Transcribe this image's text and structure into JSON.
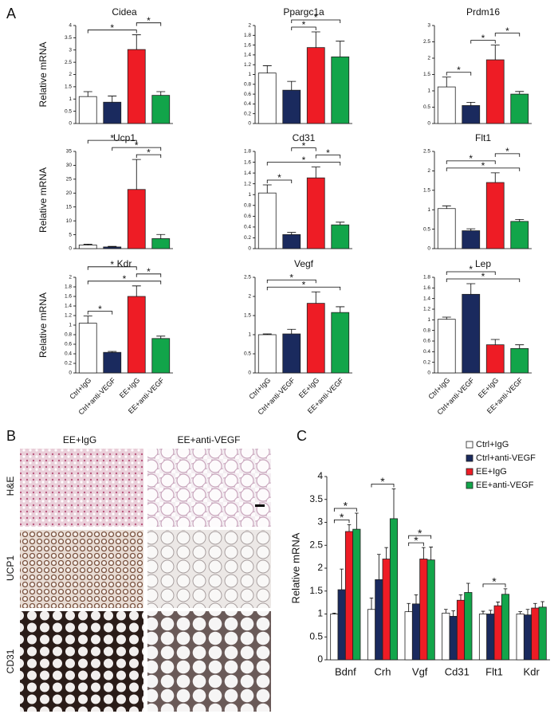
{
  "panel_labels": [
    "A",
    "B",
    "C"
  ],
  "images": {
    "columns": [
      "EE+IgG",
      "EE+anti-VEGF"
    ],
    "rows": [
      "H&E",
      "UCP1",
      "CD31"
    ]
  },
  "chart_data": [
    {
      "type": "bar",
      "title": "Cidea",
      "y_label": "Relative mRNA",
      "colors": [
        "#ffffff",
        "#1a2a5e",
        "#ee1c25",
        "#12a54a"
      ],
      "values": [
        1.1,
        0.87,
        3.02,
        1.15
      ],
      "errors": [
        0.2,
        0.25,
        0.6,
        0.15
      ],
      "ylim": [
        0,
        4
      ],
      "yticks": [
        0,
        0.5,
        1,
        1.5,
        2,
        2.5,
        3,
        3.5,
        4
      ],
      "significance": [
        {
          "label": "*",
          "bars": [
            0,
            2
          ]
        },
        {
          "label": "*",
          "bars": [
            2,
            3
          ]
        }
      ]
    },
    {
      "type": "bar",
      "title": "Ppargc1a",
      "colors": [
        "#ffffff",
        "#1a2a5e",
        "#ee1c25",
        "#12a54a"
      ],
      "values": [
        1.03,
        0.68,
        1.55,
        1.36
      ],
      "errors": [
        0.15,
        0.18,
        0.32,
        0.32
      ],
      "ylim": [
        0,
        2
      ],
      "yticks": [
        0,
        0.2,
        0.4,
        0.6,
        0.8,
        1,
        1.2,
        1.4,
        1.6,
        1.8,
        2
      ],
      "significance": [
        {
          "label": "*",
          "bars": [
            1,
            2
          ]
        },
        {
          "label": "*",
          "bars": [
            1,
            3
          ]
        }
      ]
    },
    {
      "type": "bar",
      "title": "Prdm16",
      "colors": [
        "#ffffff",
        "#1a2a5e",
        "#ee1c25",
        "#12a54a"
      ],
      "values": [
        1.12,
        0.55,
        1.95,
        0.9
      ],
      "errors": [
        0.3,
        0.1,
        0.45,
        0.08
      ],
      "ylim": [
        0,
        3
      ],
      "yticks": [
        0,
        0.5,
        1,
        1.5,
        2,
        2.5,
        3
      ],
      "significance": [
        {
          "label": "*",
          "bars": [
            0,
            1
          ]
        },
        {
          "label": "*",
          "bars": [
            1,
            2
          ]
        },
        {
          "label": "*",
          "bars": [
            2,
            3
          ]
        }
      ]
    },
    {
      "type": "bar",
      "title": "Ucp1",
      "y_label": "Relative mRNA",
      "colors": [
        "#ffffff",
        "#1a2a5e",
        "#ee1c25",
        "#12a54a"
      ],
      "values": [
        1.3,
        0.6,
        21.3,
        3.6
      ],
      "errors": [
        0.3,
        0.2,
        10.8,
        1.5
      ],
      "ylim": [
        0,
        35
      ],
      "yticks": [
        0,
        5,
        10,
        15,
        20,
        25,
        30,
        35
      ],
      "significance": [
        {
          "label": "*",
          "bars": [
            2,
            3
          ]
        },
        {
          "label": "*",
          "bars": [
            1,
            3
          ]
        },
        {
          "label": "*",
          "bars": [
            0,
            2
          ]
        }
      ]
    },
    {
      "type": "bar",
      "title": "Cd31",
      "colors": [
        "#ffffff",
        "#1a2a5e",
        "#ee1c25",
        "#12a54a"
      ],
      "values": [
        1.03,
        0.26,
        1.31,
        0.44
      ],
      "errors": [
        0.15,
        0.04,
        0.2,
        0.05
      ],
      "ylim": [
        0,
        1.8
      ],
      "yticks": [
        0,
        0.2,
        0.4,
        0.6,
        0.8,
        1,
        1.2,
        1.4,
        1.6,
        1.8
      ],
      "significance": [
        {
          "label": "*",
          "bars": [
            0,
            1
          ]
        },
        {
          "label": "*",
          "bars": [
            0,
            3
          ]
        },
        {
          "label": "*",
          "bars": [
            2,
            3
          ]
        },
        {
          "label": "*",
          "bars": [
            1,
            2
          ]
        }
      ]
    },
    {
      "type": "bar",
      "title": "Flt1",
      "colors": [
        "#ffffff",
        "#1a2a5e",
        "#ee1c25",
        "#12a54a"
      ],
      "values": [
        1.03,
        0.46,
        1.7,
        0.7
      ],
      "errors": [
        0.07,
        0.05,
        0.25,
        0.05
      ],
      "ylim": [
        0,
        2.5
      ],
      "yticks": [
        0,
        0.5,
        1,
        1.5,
        2,
        2.5
      ],
      "significance": [
        {
          "label": "*",
          "bars": [
            0,
            3
          ]
        },
        {
          "label": "*",
          "bars": [
            0,
            2
          ]
        },
        {
          "label": "*",
          "bars": [
            2,
            3
          ]
        }
      ]
    },
    {
      "type": "bar",
      "title": "Kdr",
      "y_label": "Relative mRNA",
      "colors": [
        "#ffffff",
        "#1a2a5e",
        "#ee1c25",
        "#12a54a"
      ],
      "categories": [
        "Ctrl+IgG",
        "Ctrl+anti-VEGF",
        "EE+IgG",
        "EE+anti-VEGF"
      ],
      "values": [
        1.04,
        0.43,
        1.6,
        0.72
      ],
      "errors": [
        0.15,
        0.02,
        0.22,
        0.05
      ],
      "ylim": [
        0,
        2
      ],
      "yticks": [
        0,
        0.2,
        0.4,
        0.6,
        0.8,
        1,
        1.2,
        1.4,
        1.6,
        1.8,
        2
      ],
      "significance": [
        {
          "label": "*",
          "bars": [
            0,
            1
          ]
        },
        {
          "label": "*",
          "bars": [
            0,
            3
          ]
        },
        {
          "label": "*",
          "bars": [
            2,
            3
          ]
        },
        {
          "label": "*",
          "bars": [
            0,
            2
          ]
        }
      ]
    },
    {
      "type": "bar",
      "title": "Vegf",
      "colors": [
        "#ffffff",
        "#1a2a5e",
        "#ee1c25",
        "#12a54a"
      ],
      "categories": [
        "Ctrl+IgG",
        "Ctrl+anti-VEGF",
        "EE+IgG",
        "EE+anti-VEGF"
      ],
      "values": [
        1.0,
        1.02,
        1.82,
        1.58
      ],
      "errors": [
        0.02,
        0.12,
        0.3,
        0.15
      ],
      "ylim": [
        0,
        2.5
      ],
      "yticks": [
        0,
        0.5,
        1,
        1.5,
        2,
        2.5
      ],
      "significance": [
        {
          "label": "*",
          "bars": [
            0,
            3
          ]
        },
        {
          "label": "*",
          "bars": [
            0,
            2
          ]
        }
      ]
    },
    {
      "type": "bar",
      "title": "Lep",
      "colors": [
        "#ffffff",
        "#1a2a5e",
        "#ee1c25",
        "#12a54a"
      ],
      "categories": [
        "Ctrl+IgG",
        "Ctrl+anti-VEGF",
        "EE+IgG",
        "EE+anti-VEGF"
      ],
      "values": [
        1.01,
        1.48,
        0.53,
        0.46
      ],
      "errors": [
        0.04,
        0.2,
        0.1,
        0.07
      ],
      "ylim": [
        0,
        1.8
      ],
      "yticks": [
        0,
        0.2,
        0.4,
        0.6,
        0.8,
        1,
        1.2,
        1.4,
        1.6,
        1.8
      ],
      "significance": [
        {
          "label": "*",
          "bars": [
            0,
            3
          ]
        },
        {
          "label": "*",
          "bars": [
            0,
            2
          ]
        }
      ]
    },
    {
      "type": "bar",
      "y_label": "Relative mRNA",
      "legend": "upper right",
      "categories": [
        "Bdnf",
        "Crh",
        "Vgf",
        "Cd31",
        "Flt1",
        "Kdr"
      ],
      "series": [
        {
          "name": "Ctrl+IgG",
          "color": "#ffffff",
          "values": [
            1,
            1.1,
            1.05,
            1.02,
            1,
            1
          ],
          "errors": [
            0.02,
            0.25,
            0.18,
            0.08,
            0.06,
            0.05
          ]
        },
        {
          "name": "Ctrl+anti-VEGF",
          "color": "#1a2a5e",
          "values": [
            1.53,
            1.75,
            1.22,
            0.95,
            1,
            0.98
          ],
          "errors": [
            0.45,
            0.55,
            0.2,
            0.12,
            0.08,
            0.12
          ]
        },
        {
          "name": "EE+IgG",
          "color": "#ee1c25",
          "values": [
            2.8,
            2.2,
            2.2,
            1.3,
            1.18,
            1.13
          ],
          "errors": [
            0.15,
            0.25,
            0.25,
            0.12,
            0.08,
            0.1
          ]
        },
        {
          "name": "EE+anti-VEGF",
          "color": "#12a54a",
          "values": [
            2.85,
            3.08,
            2.18,
            1.47,
            1.43,
            1.15
          ],
          "errors": [
            0.35,
            0.65,
            0.28,
            0.2,
            0.12,
            0.12
          ]
        }
      ],
      "ylim": [
        0,
        4
      ],
      "yticks": [
        0,
        0.5,
        1,
        1.5,
        2,
        2.5,
        3,
        3.5,
        4
      ],
      "significance": [
        {
          "label": "*",
          "category": "Bdnf",
          "bars": [
            0,
            2
          ]
        },
        {
          "label": "*",
          "category": "Bdnf",
          "bars": [
            0,
            3
          ]
        },
        {
          "label": "*",
          "category": "Crh",
          "bars": [
            0,
            3
          ]
        },
        {
          "label": "*",
          "category": "Vgf",
          "bars": [
            0,
            2
          ]
        },
        {
          "label": "*",
          "category": "Vgf",
          "bars": [
            0,
            3
          ]
        },
        {
          "label": "*",
          "category": "Flt1",
          "bars": [
            0,
            3
          ]
        }
      ]
    }
  ]
}
